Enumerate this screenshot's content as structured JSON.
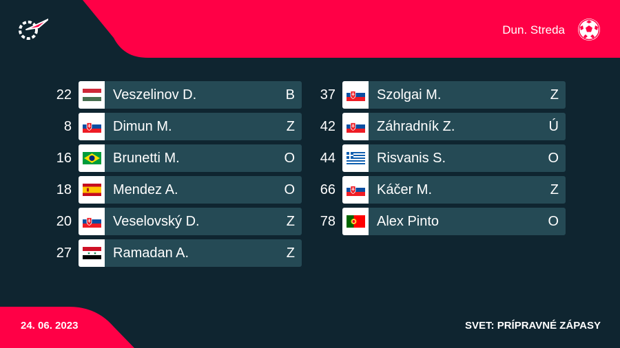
{
  "header": {
    "team_name": "Dun. Streda",
    "logo_icon": "flashscore-logo-icon",
    "team_icon": "football-icon",
    "accent_color": "#ff0046",
    "background_color": "#0f2530",
    "card_color": "#254a55"
  },
  "left_players": [
    {
      "number": "22",
      "name": "Veszelinov D.",
      "position": "B",
      "flag": "hungary-flag-icon"
    },
    {
      "number": "8",
      "name": "Dimun M.",
      "position": "Z",
      "flag": "slovakia-flag-icon"
    },
    {
      "number": "16",
      "name": "Brunetti M.",
      "position": "O",
      "flag": "brazil-flag-icon"
    },
    {
      "number": "18",
      "name": "Mendez A.",
      "position": "O",
      "flag": "spain-flag-icon"
    },
    {
      "number": "20",
      "name": "Veselovský D.",
      "position": "Z",
      "flag": "slovakia-flag-icon"
    },
    {
      "number": "27",
      "name": "Ramadan A.",
      "position": "Z",
      "flag": "syria-flag-icon"
    }
  ],
  "right_players": [
    {
      "number": "37",
      "name": "Szolgai M.",
      "position": "Z",
      "flag": "slovakia-flag-icon"
    },
    {
      "number": "42",
      "name": "Záhradník Z.",
      "position": "Ú",
      "flag": "slovakia-flag-icon"
    },
    {
      "number": "44",
      "name": "Risvanis S.",
      "position": "O",
      "flag": "greece-flag-icon"
    },
    {
      "number": "66",
      "name": "Káčer M.",
      "position": "Z",
      "flag": "slovakia-flag-icon"
    },
    {
      "number": "78",
      "name": "Alex Pinto",
      "position": "O",
      "flag": "portugal-flag-icon"
    }
  ],
  "footer": {
    "date": "24. 06. 2023",
    "competition": "SVET: PRÍPRAVNÉ ZÁPASY"
  }
}
